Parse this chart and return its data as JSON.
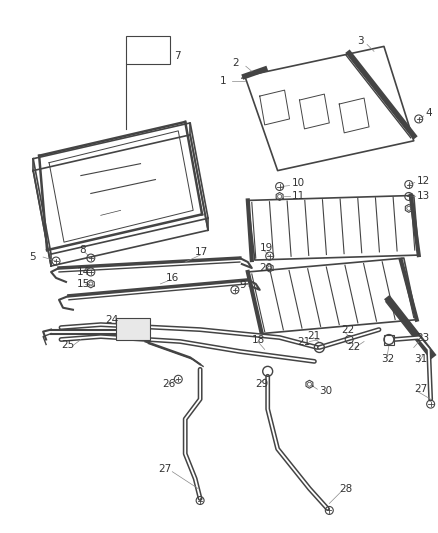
{
  "bg_color": "#ffffff",
  "line_color": "#444444",
  "label_color": "#333333",
  "fig_width": 4.38,
  "fig_height": 5.33,
  "dpi": 100
}
